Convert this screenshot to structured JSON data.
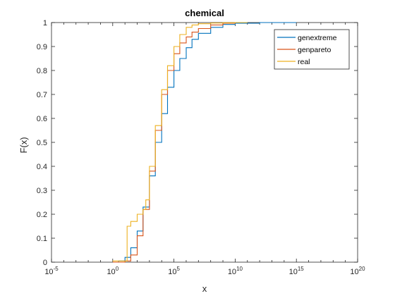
{
  "chart_data": {
    "type": "line",
    "title": "chemical",
    "xlabel": "x",
    "ylabel": "F(x)",
    "xscale": "log",
    "xlim": [
      1e-05,
      100000000000000000000
    ],
    "ylim": [
      0,
      1
    ],
    "x_ticks": [
      {
        "base": "10",
        "exp": "-5"
      },
      {
        "base": "10",
        "exp": "0"
      },
      {
        "base": "10",
        "exp": "5"
      },
      {
        "base": "10",
        "exp": "10"
      },
      {
        "base": "10",
        "exp": "15"
      },
      {
        "base": "10",
        "exp": "20"
      }
    ],
    "y_ticks": [
      "0",
      "0.1",
      "0.2",
      "0.3",
      "0.4",
      "0.5",
      "0.6",
      "0.7",
      "0.8",
      "0.9",
      "1"
    ],
    "grid": false,
    "legend_position": "top-right",
    "series": [
      {
        "name": "genextreme",
        "color": "#0072BD",
        "x": [
          1,
          3,
          10,
          30,
          100,
          300,
          1000,
          3000,
          10000,
          30000,
          100000,
          300000,
          1000000,
          3000000,
          10000000,
          100000000,
          1000000000,
          10000000000,
          1000000000000,
          1000000000000000
        ],
        "y": [
          0.0,
          0.005,
          0.02,
          0.06,
          0.13,
          0.23,
          0.36,
          0.5,
          0.62,
          0.73,
          0.8,
          0.85,
          0.895,
          0.93,
          0.955,
          0.98,
          0.992,
          0.997,
          1.0,
          1.0
        ]
      },
      {
        "name": "genpareto",
        "color": "#D95319",
        "x": [
          1,
          10,
          30,
          100,
          300,
          1000,
          3000,
          10000,
          30000,
          100000,
          300000,
          1000000,
          3000000,
          10000000,
          100000000,
          1000000000,
          10000000000
        ],
        "y": [
          0.0,
          0.005,
          0.03,
          0.11,
          0.22,
          0.38,
          0.55,
          0.7,
          0.8,
          0.87,
          0.915,
          0.94,
          0.96,
          0.975,
          0.99,
          0.997,
          1.0
        ]
      },
      {
        "name": "real",
        "color": "#EDB120",
        "x": [
          1,
          15,
          15,
          30,
          100,
          300,
          500,
          1000,
          3000,
          10000,
          30000,
          100000,
          300000,
          1000000,
          3000000,
          10000000,
          100000000,
          1000000000,
          10000000000,
          100000000000
        ],
        "y": [
          0.005,
          0.008,
          0.15,
          0.17,
          0.2,
          0.22,
          0.26,
          0.4,
          0.57,
          0.72,
          0.82,
          0.9,
          0.95,
          0.98,
          0.99,
          0.995,
          0.998,
          0.999,
          1.0,
          1.0
        ]
      }
    ]
  }
}
